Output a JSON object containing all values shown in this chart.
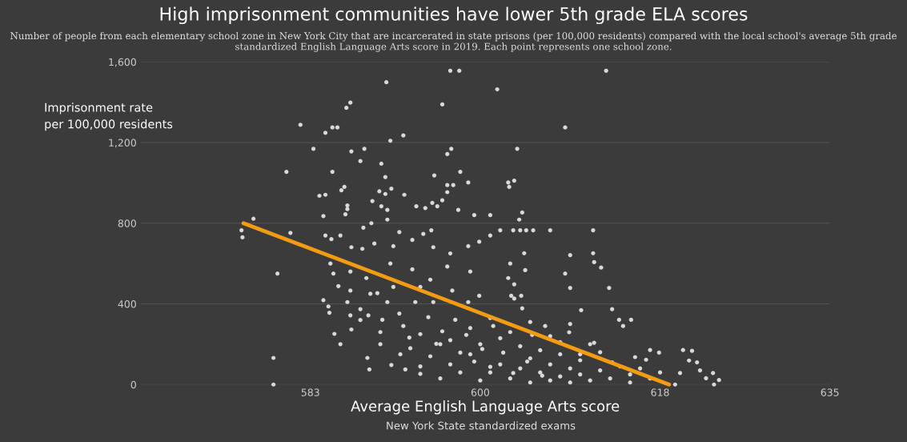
{
  "chart_data": {
    "type": "scatter",
    "title": "High imprisonment communities have lower 5th grade ELA scores",
    "subtitle": "Number of people from each elementary school zone in New York City that are incarcerated in state prisons (per 100,000 residents) compared with the local school's average 5th grade standardized English Language Arts score in 2019. Each point represents one school zone.",
    "xlabel": "Average English Language Arts score",
    "ylabel": "Imprisonment rate\nper 100,000 residents",
    "annotations": [
      "New York State standardized exams"
    ],
    "xlim": [
      566,
      635
    ],
    "xticks": [
      583,
      600,
      618,
      635
    ],
    "ylim": [
      0,
      1600
    ],
    "yticks": [
      {
        "value": 0,
        "label": "0"
      },
      {
        "value": 400,
        "label": "400"
      },
      {
        "value": 800,
        "label": "800"
      },
      {
        "value": 1200,
        "label": "1,200"
      },
      {
        "value": 1600,
        "label": "1,600"
      }
    ],
    "grid": "y",
    "legend": false,
    "marker": "circle",
    "series": [
      {
        "color": "#d9d9d9",
        "x": [
          597.0,
          597.9,
          590.6,
          601.7,
          596.2,
          587.0,
          586.6,
          582.0,
          584.5,
          585.2,
          585.7,
          592.3,
          591.0,
          583.3,
          587.1,
          588.4,
          597.1,
          596.7,
          603.7,
          588.0,
          590.1,
          580.6,
          585.2,
          590.5,
          598.0,
          595.4,
          598.8,
          602.8,
          603.4,
          602.9,
          583.9,
          584.5,
          586.1,
          586.4,
          591.1,
          589.9,
          590.5,
          592.4,
          596.7,
          597.3,
          596.7,
          589.2,
          586.7,
          586.7,
          586.5,
          590.1,
          590.7,
          593.6,
          594.5,
          595.2,
          595.7,
          596.2,
          597.8,
          599.4,
          601.0,
          604.2,
          603.9,
          584.3,
          577.3,
          576.1,
          576.2,
          581.0,
          612.6,
          608.5,
          602.0,
          603.3,
          604.0,
          604.6,
          605.3,
          607.0,
          611.3,
          609.0,
          611.3,
          611.4,
          612.1,
          608.5,
          609.0,
          612.9,
          604.4,
          604.5,
          602.8,
          603.4,
          603.4,
          604.1,
          610.1,
          613.2,
          613.9,
          615.1,
          614.3,
          620.3,
          621.2,
          620.9,
          621.7,
          622.0,
          623.3,
          623.9,
          623.4,
          622.6,
          620.0,
          619.5,
          617.0,
          617.9,
          616.6,
          613.2,
          611.4,
          608.9,
          615.5,
          579.7,
          579.3,
          579.3,
          585.3,
          584.3,
          584.8,
          584.9,
          585.4,
          587.1,
          588.7,
          588.9,
          591.1,
          592.5,
          594.0,
          585.8,
          587.0,
          586.7,
          587.0,
          588.0,
          588.8,
          588.6,
          589.7,
          590.2,
          590.7,
          591.3,
          591.9,
          592.3,
          592.9,
          593.2,
          593.5,
          594.0,
          594.8,
          595.3,
          595.6,
          596.2,
          596.7,
          597.2,
          597.5,
          598.0,
          598.6,
          598.8,
          599.4,
          599.9,
          600.2,
          601.0,
          601.3,
          602.3,
          603.1,
          603.3,
          604.2,
          604.7,
          605.2,
          606.2,
          606.5,
          588.3,
          589.1,
          590.7,
          591.9,
          593.2,
          594.3,
          595.1,
          598.8,
          599.9,
          601.0,
          587.1,
          588.2,
          589.4,
          591.3,
          595.3,
          584.5,
          585.1,
          586.0,
          600,
          601,
          602,
          603,
          604,
          605,
          605,
          606,
          607,
          607,
          608,
          608,
          609,
          609,
          610,
          610,
          611,
          612,
          612,
          613,
          614,
          615,
          615,
          616,
          617,
          618,
          599,
          598,
          597,
          596,
          595,
          594,
          593,
          600,
          602,
          604,
          606,
          608,
          610,
          597,
          599,
          601,
          603,
          605,
          607,
          609,
          611,
          590,
          592,
          594,
          596,
          586,
          588,
          590,
          589,
          587,
          585,
          591,
          595,
          599,
          603,
          597
        ],
        "values": [
          1556,
          1556,
          1499,
          1464,
          1389,
          1398,
          1372,
          1288,
          1248,
          1275,
          1275,
          1235,
          1209,
          1169,
          1156,
          1169,
          1169,
          1143,
          1169,
          1108,
          1095,
          1055,
          1055,
          1029,
          1055,
          1037,
          1002,
          1002,
          1011,
          980,
          936,
          941,
          963,
          980,
          971,
          958,
          945,
          941,
          989,
          989,
          954,
          910,
          888,
          870,
          844,
          884,
          866,
          884,
          875,
          901,
          884,
          914,
          866,
          840,
          840,
          853,
          818,
          835,
          822,
          765,
          730,
          752,
          1556,
          1275,
          765,
          765,
          765,
          765,
          765,
          765,
          765,
          642,
          651,
          607,
          580,
          550,
          479,
          479,
          651,
          567,
          528,
          497,
          426,
          440,
          369,
          374,
          321,
          321,
          290,
          171,
          167,
          119,
          110,
          70,
          57,
          22,
          0,
          31,
          57,
          0,
          171,
          158,
          123,
          110,
          207,
          259,
          136,
          550,
          132,
          0,
          550,
          418,
          387,
          356,
          251,
          273,
          132,
          75,
          97,
          75,
          53,
          488,
          466,
          409,
          343,
          374,
          343,
          528,
          453,
          321,
          409,
          484,
          352,
          290,
          233,
          571,
          409,
          484,
          334,
          409,
          202,
          264,
          585,
          466,
          321,
          158,
          246,
          409,
          114,
          440,
          176,
          88,
          290,
          158,
          440,
          57,
          378,
          114,
          246,
          44,
          290,
          778,
          800,
          818,
          756,
          717,
          747,
          765,
          686,
          708,
          739,
          681,
          673,
          699,
          686,
          681,
          739,
          721,
          739,
          20,
          60,
          100,
          30,
          80,
          10,
          130,
          60,
          20,
          100,
          40,
          150,
          80,
          10,
          50,
          120,
          20,
          70,
          160,
          30,
          90,
          10,
          50,
          80,
          30,
          60,
          150,
          60,
          100,
          30,
          140,
          90,
          180,
          200,
          230,
          190,
          170,
          210,
          150,
          220,
          280,
          330,
          260,
          310,
          240,
          300,
          200,
          200,
          150,
          250,
          200,
          200,
          320,
          260,
          450,
          560,
          600,
          600,
          520,
          560,
          600,
          650
        ]
      },
      {
        "type": "line",
        "color": "#f39c12",
        "marker": "none",
        "line_style": "solid",
        "x": [
          576.3,
          618.9
        ],
        "values": [
          800,
          0
        ]
      }
    ]
  }
}
